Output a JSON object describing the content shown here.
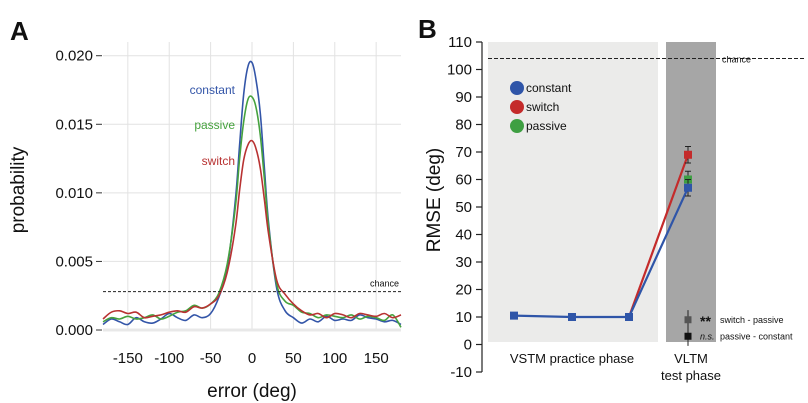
{
  "chart_data": [
    {
      "panel": "A",
      "type": "line",
      "xlabel": "error (deg)",
      "ylabel": "probability",
      "xlim": [
        -180,
        180
      ],
      "ylim": [
        0,
        0.021
      ],
      "xticks": [
        "-150",
        "-100",
        "-50",
        "0",
        "50",
        "100",
        "150"
      ],
      "xtick_values": [
        -150,
        -100,
        -50,
        0,
        50,
        100,
        150
      ],
      "yticks": [
        "0.000",
        "0.005",
        "0.010",
        "0.015",
        "0.020"
      ],
      "ytick_values": [
        0,
        0.005,
        0.01,
        0.015,
        0.02
      ],
      "grid": true,
      "chance": {
        "label": "chance",
        "value": 0.0028
      },
      "series": [
        {
          "name": "constant",
          "color": "#3355a8",
          "x": [
            -180,
            -170,
            -160,
            -150,
            -140,
            -130,
            -120,
            -110,
            -100,
            -90,
            -80,
            -70,
            -60,
            -50,
            -40,
            -30,
            -20,
            -15,
            -10,
            -5,
            0,
            5,
            10,
            15,
            20,
            30,
            40,
            50,
            60,
            70,
            80,
            90,
            100,
            110,
            120,
            130,
            140,
            150,
            160,
            170,
            180
          ],
          "y": [
            0.0004,
            0.0008,
            0.0006,
            0.0004,
            0.0009,
            0.0006,
            0.0005,
            0.0008,
            0.0012,
            0.0009,
            0.0007,
            0.0011,
            0.0009,
            0.0012,
            0.0024,
            0.0045,
            0.0095,
            0.0135,
            0.0172,
            0.0192,
            0.0195,
            0.0182,
            0.0158,
            0.0118,
            0.0078,
            0.003,
            0.0014,
            0.0009,
            0.0005,
            0.0008,
            0.0006,
            0.001,
            0.0007,
            0.0008,
            0.0007,
            0.0011,
            0.0009,
            0.0008,
            0.0006,
            0.0007,
            0.0004
          ]
        },
        {
          "name": "passive",
          "color": "#46a23e",
          "x": [
            -180,
            -170,
            -160,
            -150,
            -140,
            -130,
            -120,
            -110,
            -100,
            -90,
            -80,
            -70,
            -60,
            -50,
            -40,
            -30,
            -20,
            -15,
            -10,
            -5,
            0,
            5,
            10,
            15,
            20,
            30,
            40,
            50,
            60,
            70,
            80,
            90,
            100,
            110,
            120,
            130,
            140,
            150,
            160,
            170,
            180
          ],
          "y": [
            0.0006,
            0.0009,
            0.0008,
            0.001,
            0.0008,
            0.0009,
            0.0011,
            0.0008,
            0.001,
            0.0013,
            0.0014,
            0.0018,
            0.0016,
            0.0019,
            0.0027,
            0.0048,
            0.009,
            0.0125,
            0.0152,
            0.0168,
            0.017,
            0.0162,
            0.0142,
            0.011,
            0.0075,
            0.0033,
            0.0021,
            0.0018,
            0.0013,
            0.0012,
            0.0009,
            0.0011,
            0.001,
            0.0009,
            0.0011,
            0.0008,
            0.001,
            0.0009,
            0.0007,
            0.0011,
            0.0002
          ]
        },
        {
          "name": "switch",
          "color": "#b83232",
          "x": [
            -180,
            -170,
            -160,
            -150,
            -140,
            -130,
            -120,
            -110,
            -100,
            -90,
            -80,
            -70,
            -60,
            -50,
            -40,
            -30,
            -20,
            -15,
            -10,
            -5,
            0,
            5,
            10,
            15,
            20,
            30,
            40,
            50,
            60,
            70,
            80,
            90,
            100,
            110,
            120,
            130,
            140,
            150,
            160,
            170,
            180
          ],
          "y": [
            0.0008,
            0.0013,
            0.0014,
            0.0012,
            0.0013,
            0.0009,
            0.001,
            0.0011,
            0.0013,
            0.0014,
            0.0013,
            0.0017,
            0.0016,
            0.0019,
            0.0025,
            0.0042,
            0.0075,
            0.0102,
            0.0124,
            0.0135,
            0.0138,
            0.0132,
            0.0118,
            0.0095,
            0.007,
            0.0036,
            0.0026,
            0.0019,
            0.0014,
            0.0011,
            0.0012,
            0.0009,
            0.0012,
            0.0011,
            0.0009,
            0.0012,
            0.0011,
            0.001,
            0.0012,
            0.0009,
            0.0011
          ]
        }
      ]
    },
    {
      "panel": "B",
      "type": "line",
      "ylabel": "RMSE (deg)",
      "ylim": [
        -10,
        110
      ],
      "yticks": [
        "-10",
        "0",
        "10",
        "20",
        "30",
        "40",
        "50",
        "60",
        "70",
        "80",
        "90",
        "100",
        "110"
      ],
      "ytick_values": [
        -10,
        0,
        10,
        20,
        30,
        40,
        50,
        60,
        70,
        80,
        90,
        100,
        110
      ],
      "phases": [
        {
          "label": "VSTM practice phase",
          "label2": "",
          "color": "#ebebea"
        },
        {
          "label": "VLTM",
          "label2": "test phase",
          "color": "#a6a6a6"
        }
      ],
      "chance": {
        "label": "chance",
        "value": 104
      },
      "legend_position": "top-left",
      "series": [
        {
          "name": "constant",
          "color": "#2f55a8",
          "points": [
            [
              1,
              10.5
            ],
            [
              2,
              10
            ],
            [
              3,
              10
            ],
            [
              4,
              57
            ]
          ],
          "errors": [
            0.5,
            0.5,
            0.5,
            3
          ]
        },
        {
          "name": "switch",
          "color": "#c42b2b",
          "points": [
            [
              3,
              10
            ],
            [
              4,
              69
            ]
          ],
          "errors": [
            0.5,
            3
          ]
        },
        {
          "name": "passive",
          "color": "#3e9f42",
          "points": [
            [
              4,
              60
            ]
          ],
          "errors": [
            3
          ]
        }
      ],
      "comparisons": [
        {
          "marker": "**",
          "label": "switch - passive",
          "value": 9,
          "error": 3.5,
          "color": "#555555"
        },
        {
          "marker": "n.s.",
          "label": "passive - constant",
          "value": 3,
          "error": 3.5,
          "color": "#111111"
        }
      ]
    }
  ],
  "panel_labels": [
    "A",
    "B"
  ]
}
